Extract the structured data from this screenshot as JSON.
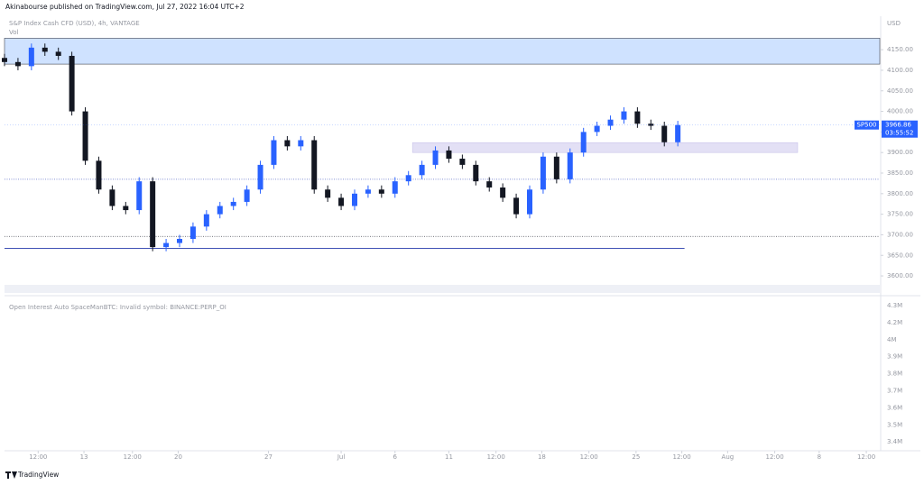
{
  "header": "Akinabourse published on TradingView.com, Jul 27, 2022 16:04 UTC+2",
  "footer": "TradingView",
  "chart_data": {
    "type": "candlestick",
    "title": "S&P Index Cash CFD (USD), 4h, VANTAGE",
    "subtitle": "Vol",
    "currency": "USD",
    "symbol": "SP500",
    "last_price": {
      "value": 3966.86,
      "label": "3966.86"
    },
    "countdown": "03:55:52",
    "up_color": "#2962ff",
    "down_color": "#131722",
    "x": [
      0,
      1,
      2,
      3,
      4,
      5,
      6,
      7,
      8,
      9,
      10,
      11,
      12,
      13,
      14,
      15,
      16,
      17,
      18,
      19,
      20,
      21,
      22,
      23,
      24,
      25,
      26,
      27,
      28,
      29,
      30,
      31,
      32,
      33,
      34,
      35,
      36,
      37,
      38,
      39,
      40,
      41,
      42,
      43,
      44,
      45,
      46,
      47,
      48,
      49,
      50
    ],
    "open": [
      4130,
      4120,
      4110,
      4155,
      4145,
      4135,
      4000,
      3880,
      3810,
      3770,
      3760,
      3830,
      3670,
      3680,
      3690,
      3720,
      3750,
      3770,
      3780,
      3810,
      3870,
      3930,
      3915,
      3930,
      3810,
      3790,
      3770,
      3800,
      3810,
      3800,
      3830,
      3845,
      3870,
      3905,
      3885,
      3870,
      3830,
      3815,
      3790,
      3750,
      3810,
      3890,
      3835,
      3900,
      3950,
      3965,
      3980,
      4000,
      3970,
      3965,
      3925
    ],
    "high": [
      4140,
      4130,
      4165,
      4165,
      4155,
      4145,
      4010,
      3890,
      3820,
      3780,
      3840,
      3840,
      3690,
      3700,
      3730,
      3760,
      3780,
      3790,
      3820,
      3880,
      3940,
      3940,
      3940,
      3940,
      3820,
      3800,
      3810,
      3820,
      3820,
      3840,
      3855,
      3880,
      3915,
      3915,
      3895,
      3880,
      3840,
      3825,
      3800,
      3820,
      3900,
      3900,
      3910,
      3960,
      3975,
      3990,
      4010,
      4010,
      3980,
      3975,
      3977
    ],
    "low": [
      4110,
      4100,
      4100,
      4135,
      4125,
      3990,
      3870,
      3800,
      3760,
      3750,
      3750,
      3660,
      3660,
      3670,
      3680,
      3710,
      3740,
      3760,
      3770,
      3800,
      3860,
      3905,
      3905,
      3800,
      3780,
      3760,
      3760,
      3790,
      3790,
      3790,
      3820,
      3835,
      3860,
      3875,
      3860,
      3820,
      3805,
      3780,
      3740,
      3740,
      3800,
      3825,
      3825,
      3890,
      3940,
      3955,
      3970,
      3960,
      3955,
      3915,
      3915
    ],
    "close": [
      4120,
      4110,
      4155,
      4145,
      4135,
      4000,
      3880,
      3810,
      3770,
      3760,
      3830,
      3670,
      3680,
      3690,
      3720,
      3750,
      3770,
      3780,
      3810,
      3870,
      3930,
      3915,
      3930,
      3810,
      3790,
      3770,
      3800,
      3810,
      3800,
      3830,
      3845,
      3870,
      3905,
      3885,
      3870,
      3830,
      3815,
      3790,
      3750,
      3810,
      3890,
      3835,
      3900,
      3950,
      3965,
      3980,
      4000,
      3970,
      3965,
      3925,
      3966.86
    ],
    "xlim": [
      0,
      65
    ],
    "xticks": [
      {
        "value": 2.5,
        "label": "12:00"
      },
      {
        "value": 5.9,
        "label": "13"
      },
      {
        "value": 9.5,
        "label": "12:00"
      },
      {
        "value": 12.9,
        "label": "20"
      },
      {
        "value": 19.6,
        "label": "27"
      },
      {
        "value": 25,
        "label": "Jul"
      },
      {
        "value": 29,
        "label": "6"
      },
      {
        "value": 33,
        "label": "11"
      },
      {
        "value": 36.5,
        "label": "12:00"
      },
      {
        "value": 39.9,
        "label": "18"
      },
      {
        "value": 43.4,
        "label": "12:00"
      },
      {
        "value": 46.9,
        "label": "25"
      },
      {
        "value": 50.3,
        "label": "12:00"
      },
      {
        "value": 53.7,
        "label": "Aug"
      },
      {
        "value": 57.2,
        "label": "12:00"
      },
      {
        "value": 60.5,
        "label": "8"
      },
      {
        "value": 64,
        "label": "12:00"
      }
    ],
    "ylim": [
      3587,
      4227
    ],
    "yticks": [
      {
        "value": 3600,
        "label": "3600.00"
      },
      {
        "value": 3650,
        "label": "3650.00"
      },
      {
        "value": 3700,
        "label": "3700.00"
      },
      {
        "value": 3750,
        "label": "3750.00"
      },
      {
        "value": 3800,
        "label": "3800.00"
      },
      {
        "value": 3850,
        "label": "3850.00"
      },
      {
        "value": 3900,
        "label": "3900.00"
      },
      {
        "value": 3950,
        "label": "3950.00"
      },
      {
        "value": 4000,
        "label": "4000.00"
      },
      {
        "value": 4050,
        "label": "4050.00"
      },
      {
        "value": 4100,
        "label": "4100.00"
      },
      {
        "value": 4150,
        "label": "4150.00"
      }
    ],
    "zones": [
      {
        "y": [
          4115,
          4178
        ],
        "color": "#cfe2ff"
      },
      {
        "x": [
          30.3,
          58.9
        ],
        "y": [
          3900,
          3924
        ],
        "color": "#e3e0f5"
      }
    ],
    "levels": [
      {
        "value": 3835,
        "style": "dotted",
        "color": "#5b6bc8"
      },
      {
        "value": 3696,
        "style": "dotted",
        "color": "#434651"
      },
      {
        "value": 3667,
        "style": "solid",
        "color": "#3f51b5",
        "x": [
          0,
          50.5
        ]
      }
    ]
  },
  "oi_pane": {
    "title": "Open Interest Auto SpaceManBTC: Invalid symbol: BINANCE:PERP_OI",
    "yticks": [
      {
        "value": 4300000,
        "label": "4.3M"
      },
      {
        "value": 4200000,
        "label": "4.2M"
      },
      {
        "value": 4000000,
        "label": "4M"
      },
      {
        "value": 3900000,
        "label": "3.9M"
      },
      {
        "value": 3800000,
        "label": "3.8M"
      },
      {
        "value": 3700000,
        "label": "3.7M"
      },
      {
        "value": 3600000,
        "label": "3.6M"
      },
      {
        "value": 3500000,
        "label": "3.5M"
      },
      {
        "value": 3400000,
        "label": "3.4M"
      }
    ]
  }
}
